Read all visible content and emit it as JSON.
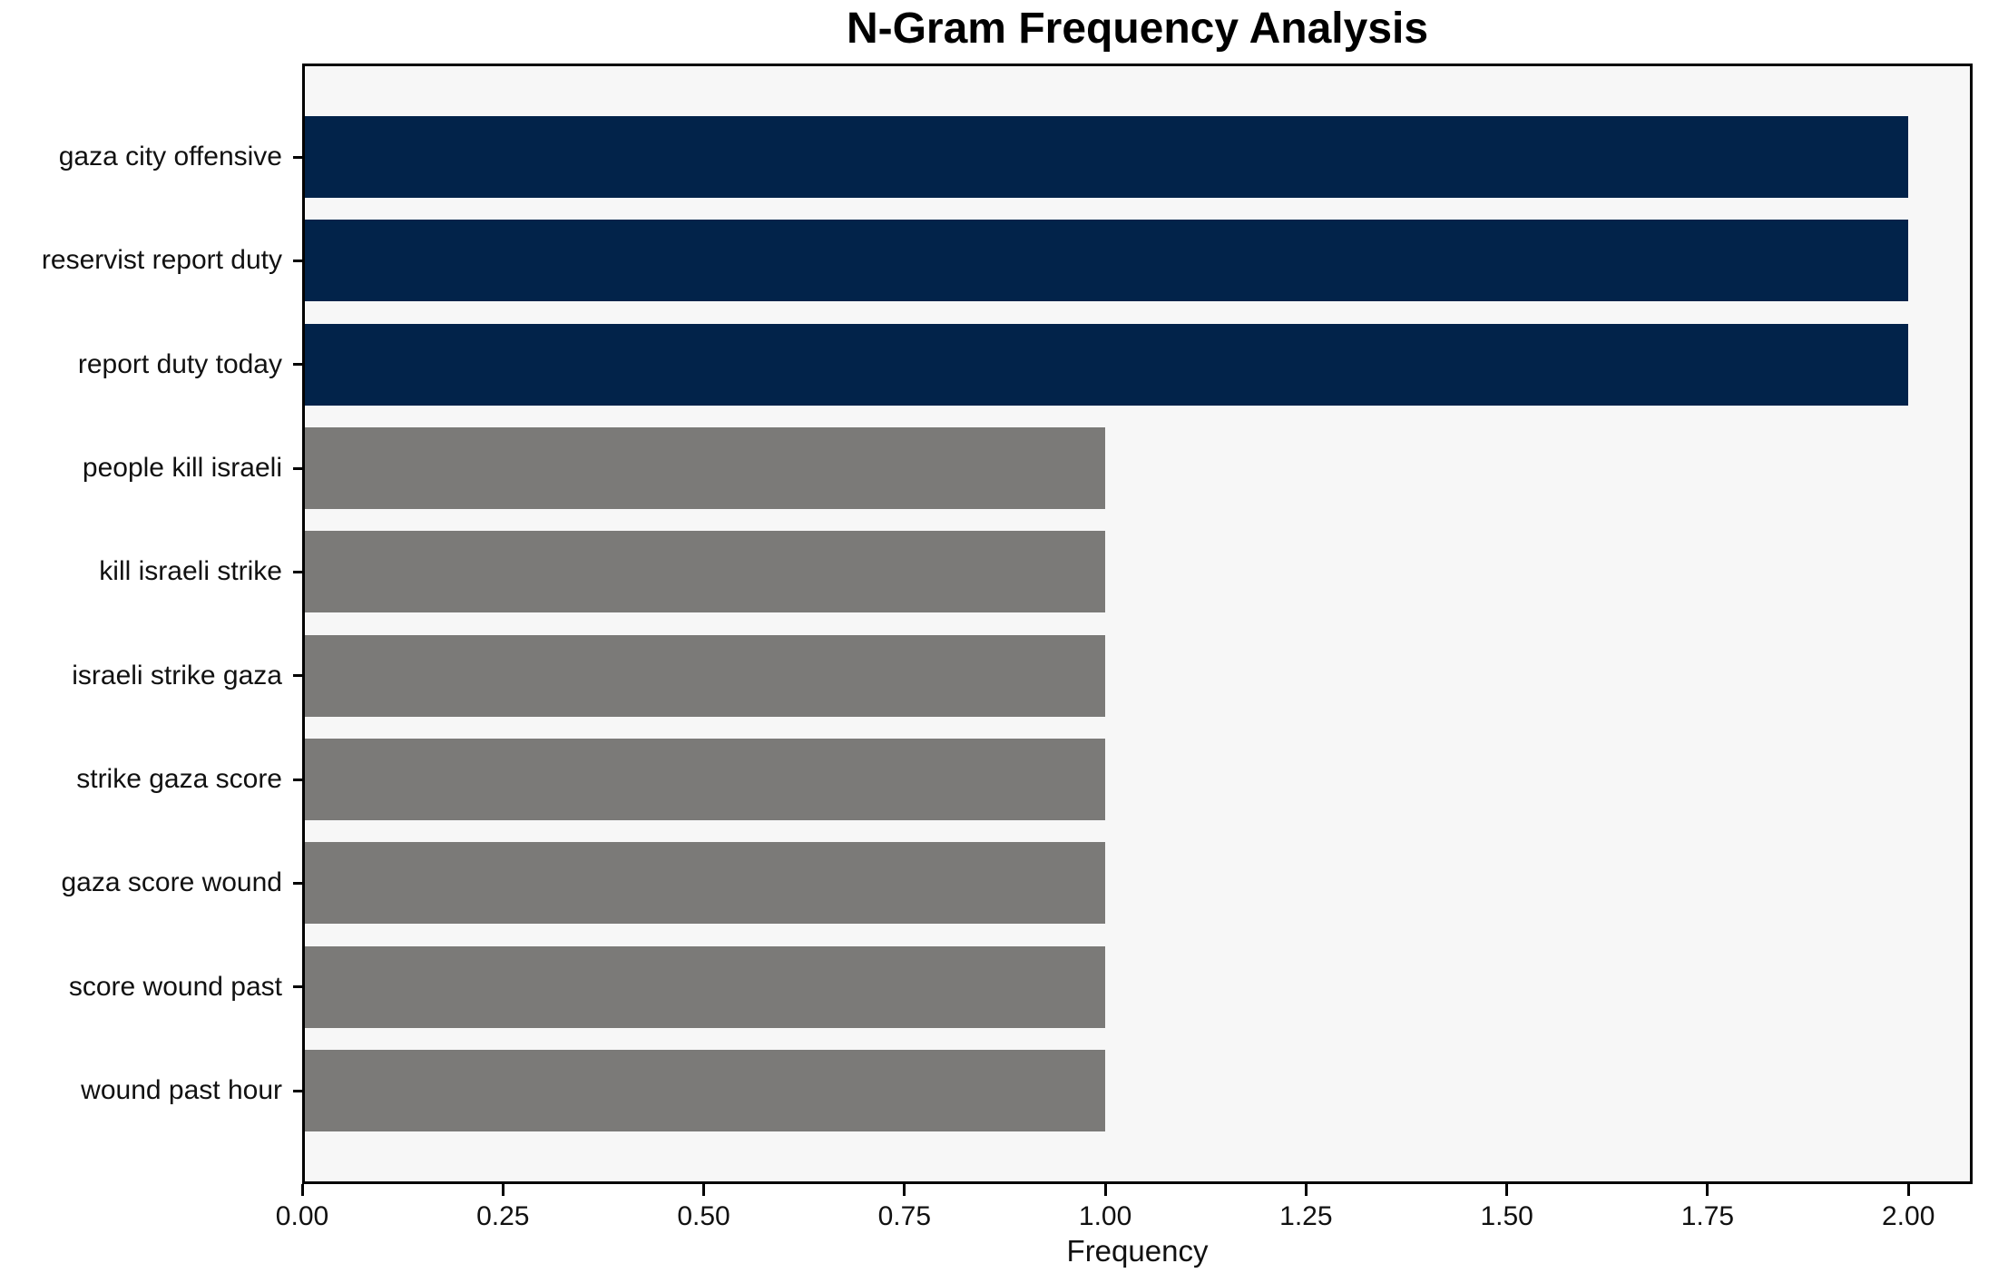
{
  "chart_data": {
    "type": "bar",
    "orientation": "horizontal",
    "title": "N-Gram Frequency Analysis",
    "xlabel": "Frequency",
    "ylabel": "",
    "categories": [
      "gaza city offensive",
      "reservist report duty",
      "report duty today",
      "people kill israeli",
      "kill israeli strike",
      "israeli strike gaza",
      "strike gaza score",
      "gaza score wound",
      "score wound past",
      "wound past hour"
    ],
    "values": [
      2,
      2,
      2,
      1,
      1,
      1,
      1,
      1,
      1,
      1
    ],
    "bar_colors": [
      "#02234a",
      "#02234a",
      "#02234a",
      "#7b7a78",
      "#7b7a78",
      "#7b7a78",
      "#7b7a78",
      "#7b7a78",
      "#7b7a78",
      "#7b7a78"
    ],
    "highlight_color": "#02234a",
    "default_color": "#7b7a78",
    "xlim": [
      0,
      2.08
    ],
    "xticks": [
      "0.00",
      "0.25",
      "0.50",
      "0.75",
      "1.00",
      "1.25",
      "1.50",
      "1.75",
      "2.00"
    ],
    "xtick_values": [
      0,
      0.25,
      0.5,
      0.75,
      1.0,
      1.25,
      1.5,
      1.75,
      2.0
    ],
    "grid": false,
    "legend": null,
    "plot_background": "#f7f7f7",
    "figure_background": "#ffffff",
    "spine_color": "#000000"
  }
}
